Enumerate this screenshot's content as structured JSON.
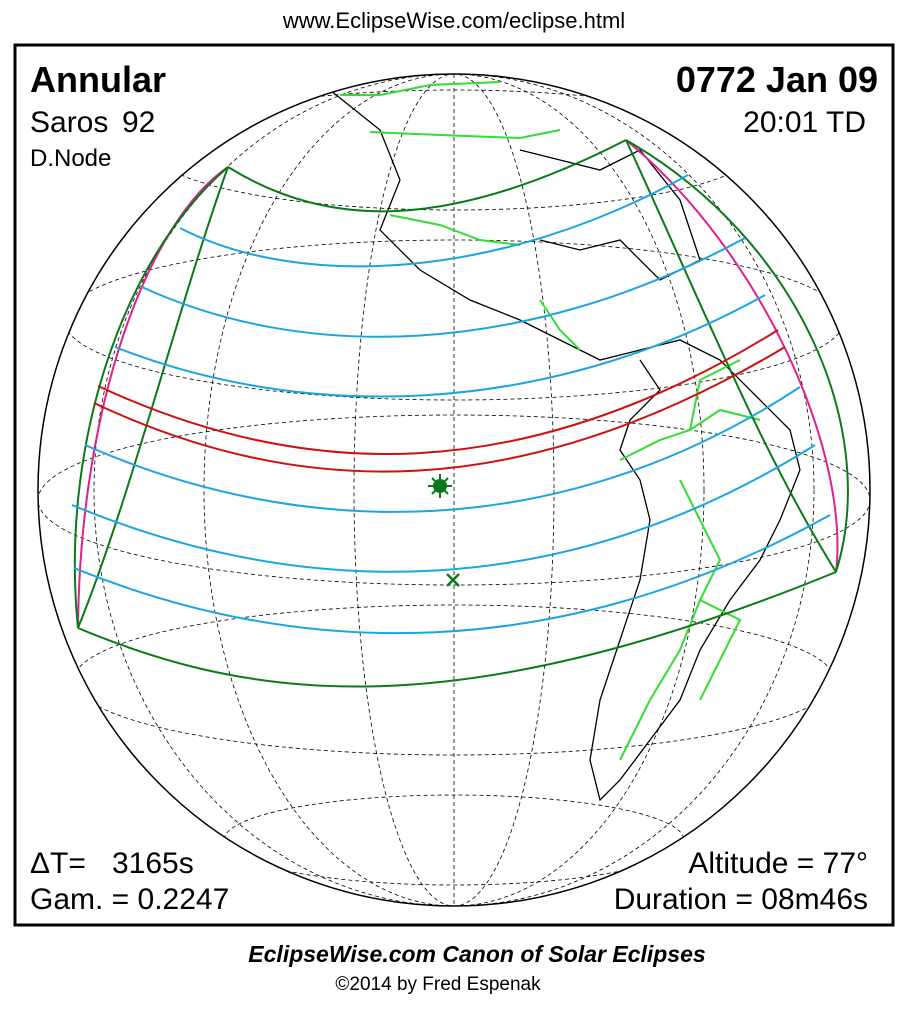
{
  "header": {
    "url": "www.EclipseWise.com/eclipse.html"
  },
  "eclipse": {
    "type": "Annular",
    "saros_label": "Saros",
    "saros": "92",
    "node": "D.Node",
    "date": "0772 Jan 09",
    "time": "20:01 TD",
    "delta_t_label": "ΔT=",
    "delta_t": "3165s",
    "gamma": "Gam. = 0.2247",
    "altitude": "Altitude = 77°",
    "duration": "Duration = 08m46s"
  },
  "footer": {
    "title": "EclipseWise.com Canon of Solar Eclipses",
    "credit": "©2014 by Fred Espenak"
  }
}
